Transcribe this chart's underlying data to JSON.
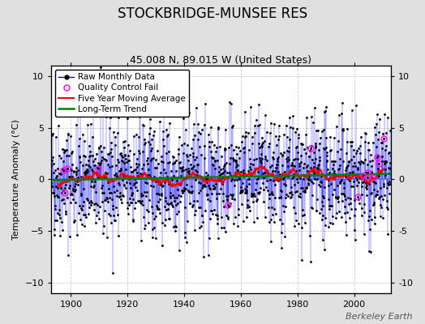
{
  "title": "STOCKBRIDGE-MUNSEE RES",
  "subtitle": "45.008 N, 89.015 W (United States)",
  "ylabel": "Temperature Anomaly (°C)",
  "watermark": "Berkeley Earth",
  "xlim": [
    1893,
    2013
  ],
  "ylim": [
    -11,
    11
  ],
  "yticks": [
    -10,
    -5,
    0,
    5,
    10
  ],
  "xticks": [
    1900,
    1920,
    1940,
    1960,
    1980,
    2000
  ],
  "start_year": 1893,
  "end_year": 2012,
  "seed": 42,
  "fig_bg_color": "#e0e0e0",
  "plot_bg_color": "#ffffff",
  "grid_color": "#cccccc",
  "raw_line_color": "blue",
  "raw_dot_color": "black",
  "qc_fail_color": "magenta",
  "moving_avg_color": "red",
  "trend_color": "green",
  "title_fontsize": 12,
  "subtitle_fontsize": 9,
  "label_fontsize": 8,
  "tick_fontsize": 8,
  "watermark_fontsize": 8,
  "legend_fontsize": 7.5
}
